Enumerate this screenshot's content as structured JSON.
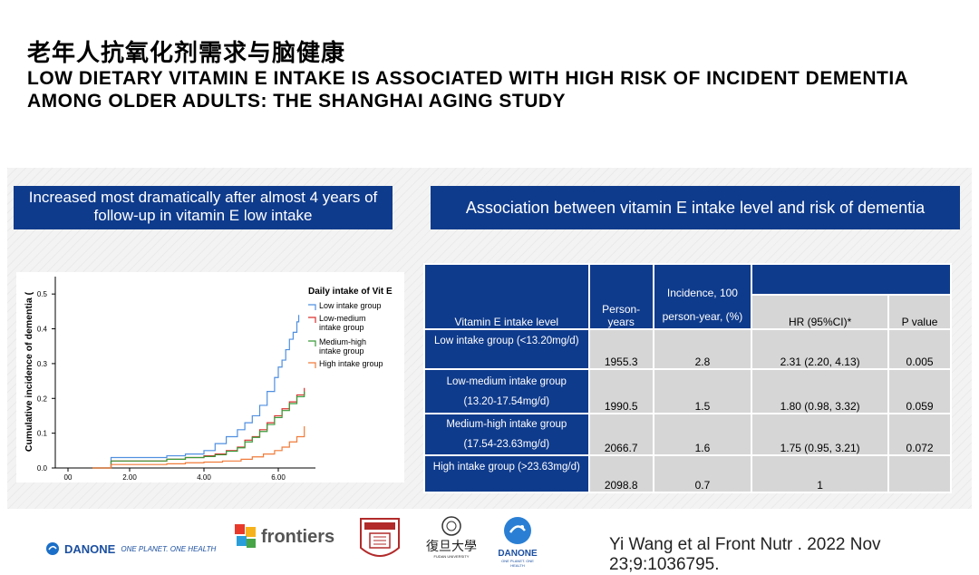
{
  "header": {
    "title_zh": "老年人抗氧化剂需求与脑健康",
    "title_en": "LOW DIETARY VITAMIN E INTAKE IS ASSOCIATED WITH HIGH RISK OF INCIDENT DEMENTIA AMONG OLDER ADULTS: THE SHANGHAI AGING STUDY"
  },
  "left_banner": {
    "text": "Increased most dramatically after almost 4 years of follow-up in vitamin E low intake"
  },
  "right_banner": {
    "text": "Association between vitamin E intake level and risk of dementia"
  },
  "chart_data": {
    "type": "line",
    "ylabel": "Cumulative incidence of dementia (",
    "xlabel": "",
    "ylim": [
      0,
      0.55
    ],
    "xlim": [
      0,
      7.0
    ],
    "y_ticks": [
      "0.0",
      "0.1",
      "0.2",
      "0.3",
      "0.4",
      "0.5"
    ],
    "x_ticks": [
      "00",
      "2.00",
      "4.00",
      "6.00"
    ],
    "legend_title": "Daily intake of Vit E",
    "legend_position": "top-right",
    "series": [
      {
        "name": "Low intake group",
        "color": "#4f8fe0",
        "x": [
          1.0,
          1.5,
          2.0,
          2.5,
          3.0,
          3.5,
          4.0,
          4.3,
          4.6,
          4.9,
          5.1,
          5.3,
          5.5,
          5.7,
          5.9,
          6.0,
          6.1,
          6.2,
          6.3,
          6.4,
          6.5,
          6.55
        ],
        "y": [
          0.0,
          0.03,
          0.03,
          0.03,
          0.035,
          0.04,
          0.05,
          0.07,
          0.09,
          0.11,
          0.13,
          0.15,
          0.18,
          0.22,
          0.26,
          0.29,
          0.31,
          0.34,
          0.37,
          0.39,
          0.42,
          0.44
        ]
      },
      {
        "name": "Low-medium intake group",
        "color": "#d9302e",
        "x": [
          1.0,
          1.5,
          2.0,
          2.5,
          3.0,
          3.5,
          4.0,
          4.3,
          4.6,
          4.9,
          5.1,
          5.3,
          5.5,
          5.7,
          5.9,
          6.1,
          6.3,
          6.5,
          6.7
        ],
        "y": [
          0.0,
          0.02,
          0.02,
          0.02,
          0.025,
          0.03,
          0.035,
          0.04,
          0.05,
          0.06,
          0.08,
          0.09,
          0.11,
          0.13,
          0.15,
          0.17,
          0.19,
          0.21,
          0.23
        ]
      },
      {
        "name": "Medium-high intake group",
        "color": "#3a9a3a",
        "x": [
          1.0,
          1.5,
          2.0,
          2.5,
          3.0,
          3.5,
          4.0,
          4.3,
          4.6,
          4.9,
          5.1,
          5.3,
          5.5,
          5.7,
          5.9,
          6.1,
          6.3,
          6.5,
          6.7
        ],
        "y": [
          0.0,
          0.02,
          0.02,
          0.02,
          0.025,
          0.03,
          0.033,
          0.038,
          0.048,
          0.058,
          0.075,
          0.088,
          0.105,
          0.125,
          0.145,
          0.165,
          0.185,
          0.205,
          0.22
        ]
      },
      {
        "name": "High intake group",
        "color": "#f07b3a",
        "x": [
          1.0,
          1.5,
          2.0,
          2.5,
          3.0,
          3.5,
          4.0,
          4.5,
          5.0,
          5.3,
          5.6,
          5.9,
          6.1,
          6.3,
          6.5,
          6.7
        ],
        "y": [
          0.0,
          0.01,
          0.01,
          0.01,
          0.012,
          0.015,
          0.017,
          0.02,
          0.025,
          0.032,
          0.04,
          0.05,
          0.06,
          0.075,
          0.09,
          0.12
        ]
      }
    ]
  },
  "table": {
    "headers": {
      "level": "Vitamin E intake level",
      "person_years": "Person-years",
      "incidence_line1": "Incidence, 100",
      "incidence_line2": "person-year, (%)",
      "hr": "HR (95%CI)*",
      "p": "P value"
    },
    "rows": [
      {
        "label1": "Low intake group (<13.20mg/d)",
        "label2": "",
        "py": "1955.3",
        "inc": "2.8",
        "hr": "2.31 (2.20, 4.13)",
        "p": "0.005"
      },
      {
        "label1": "Low-medium intake group",
        "label2": "(13.20-17.54mg/d)",
        "py": "1990.5",
        "inc": "1.5",
        "hr": "1.80 (0.98, 3.32)",
        "p": "0.059"
      },
      {
        "label1": "Medium-high intake group",
        "label2": "(17.54-23.63mg/d)",
        "py": "2066.7",
        "inc": "1.6",
        "hr": "1.75 (0.95, 3.21)",
        "p": "0.072"
      },
      {
        "label1": "High intake group (>23.63mg/d)",
        "label2": "",
        "py": "2098.8",
        "inc": "0.7",
        "hr": "1",
        "p": ""
      }
    ]
  },
  "footer": {
    "danone_brand": "DANONE",
    "danone_tagline": "ONE PLANET. ONE HEALTH",
    "frontiers": "frontiers",
    "fudan": "復旦大學",
    "fudan_sub": "FUDAN UNIVERSITY",
    "danone_small": "DANONE",
    "danone_small_tag": "ONE PLANET. ONE HEALTH",
    "citation": "Yi Wang et al Front Nutr . 2022 Nov 23;9:1036795."
  }
}
